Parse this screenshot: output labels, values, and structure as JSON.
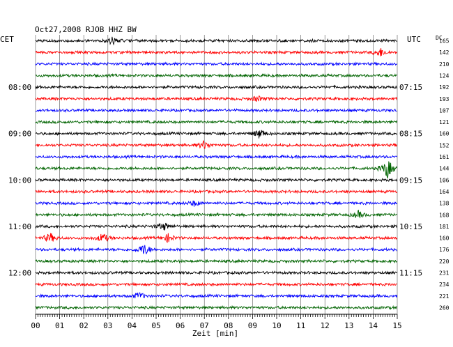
{
  "chart_data": {
    "type": "line",
    "title": "Oct27,2008  RJOB HHZ BW",
    "left_axis_title": "CET",
    "right_axis_title": "UTC",
    "dc_label": "DC",
    "xlabel": "Zeit [min]",
    "xlim": [
      0,
      15
    ],
    "x_ticks": [
      "00",
      "01",
      "02",
      "03",
      "04",
      "05",
      "06",
      "07",
      "08",
      "09",
      "10",
      "11",
      "12",
      "13",
      "14",
      "15"
    ],
    "grid": true,
    "trace_colors": [
      "#000000",
      "#ff0000",
      "#0000ff",
      "#006400"
    ],
    "traces": 24,
    "left_time_labels": [
      {
        "trace": 4,
        "label": "08:00"
      },
      {
        "trace": 8,
        "label": "09:00"
      },
      {
        "trace": 12,
        "label": "10:00"
      },
      {
        "trace": 16,
        "label": "11:00"
      },
      {
        "trace": 20,
        "label": "12:00"
      }
    ],
    "right_time_labels": [
      {
        "trace": 4,
        "label": "07:15"
      },
      {
        "trace": 8,
        "label": "08:15"
      },
      {
        "trace": 12,
        "label": "09:15"
      },
      {
        "trace": 16,
        "label": "10:15"
      },
      {
        "trace": 20,
        "label": "11:15"
      }
    ],
    "dc_values": [
      "165",
      "142",
      "210",
      "124",
      "192",
      "193",
      "107",
      "121",
      "160",
      "152",
      "161",
      "144",
      "106",
      "164",
      "138",
      "168",
      "181",
      "160",
      "176",
      "220",
      "231",
      "234",
      "221",
      "260"
    ],
    "events": [
      {
        "trace": 0,
        "minute": 3.2,
        "amplitude": 5
      },
      {
        "trace": 1,
        "minute": 14.3,
        "amplitude": 6
      },
      {
        "trace": 5,
        "minute": 9.2,
        "amplitude": 4
      },
      {
        "trace": 8,
        "minute": 9.3,
        "amplitude": 7
      },
      {
        "trace": 9,
        "minute": 7.0,
        "amplitude": 6
      },
      {
        "trace": 11,
        "minute": 14.6,
        "amplitude": 14
      },
      {
        "trace": 14,
        "minute": 6.6,
        "amplitude": 4
      },
      {
        "trace": 15,
        "minute": 13.4,
        "amplitude": 5
      },
      {
        "trace": 16,
        "minute": 5.3,
        "amplitude": 6
      },
      {
        "trace": 17,
        "minute": 0.6,
        "amplitude": 7
      },
      {
        "trace": 17,
        "minute": 2.8,
        "amplitude": 7
      },
      {
        "trace": 17,
        "minute": 5.5,
        "amplitude": 6
      },
      {
        "trace": 18,
        "minute": 4.5,
        "amplitude": 9
      },
      {
        "trace": 22,
        "minute": 4.3,
        "amplitude": 5
      }
    ]
  }
}
